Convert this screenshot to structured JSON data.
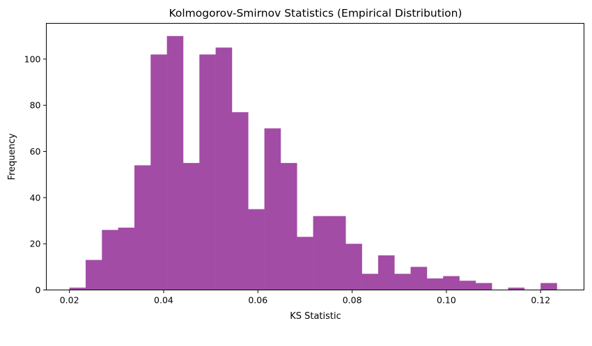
{
  "chart_data": {
    "type": "bar",
    "subtype": "histogram",
    "title": "Kolmogorov-Smirnov Statistics (Empirical Distribution)",
    "xlabel": "KS Statistic",
    "ylabel": "Frequency",
    "xlim": [
      0.0151,
      0.1292
    ],
    "ylim": [
      0,
      115.5
    ],
    "xticks": [
      0.02,
      0.04,
      0.06,
      0.08,
      0.1,
      0.12
    ],
    "xtick_labels": [
      "0.02",
      "0.04",
      "0.06",
      "0.08",
      "0.10",
      "0.12"
    ],
    "yticks": [
      0,
      20,
      40,
      60,
      80,
      100
    ],
    "ytick_labels": [
      "0",
      "20",
      "40",
      "60",
      "80",
      "100"
    ],
    "bin_start": 0.02,
    "bin_width": 0.003448,
    "values": [
      1,
      13,
      26,
      27,
      54,
      102,
      110,
      55,
      102,
      105,
      77,
      35,
      70,
      55,
      23,
      32,
      32,
      20,
      7,
      15,
      7,
      10,
      5,
      6,
      4,
      3,
      0,
      1,
      0,
      3
    ],
    "color": "#a24ca6",
    "grid": false,
    "legend": "none"
  }
}
